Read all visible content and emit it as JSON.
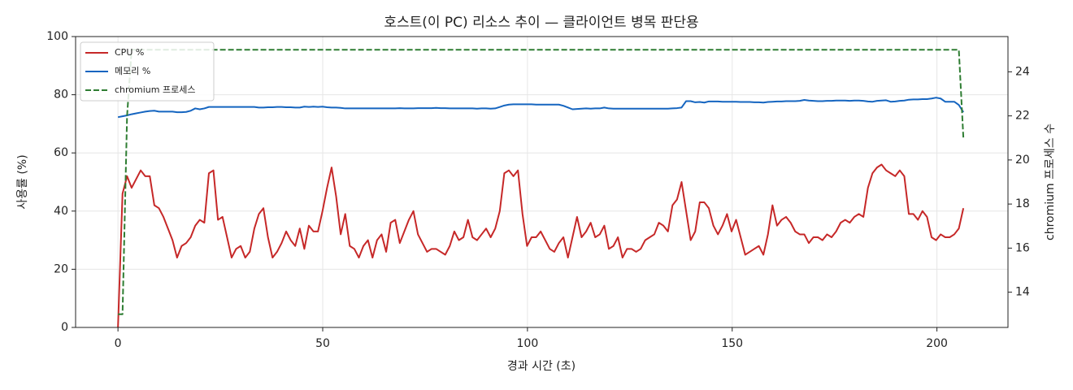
{
  "chart_data": {
    "type": "line",
    "title": "호스트(이 PC) 리소스 추이 — 클라이언트 병목 판단용",
    "xlabel": "경과 시간 (초)",
    "ylabel": "사용률 (%)",
    "y2label": "chromium 프로세스 수",
    "x": [
      0,
      1.11,
      2.22,
      3.33,
      4.44,
      5.55,
      6.66,
      7.77,
      8.88,
      9.99,
      11.1,
      12.21,
      13.32,
      14.43,
      15.54,
      16.65,
      17.76,
      18.87,
      19.98,
      21.09,
      22.2,
      23.31,
      24.42,
      25.53,
      26.64,
      27.75,
      28.86,
      29.97,
      31.08,
      32.19,
      33.3,
      34.41,
      35.52,
      36.63,
      37.74,
      38.85,
      39.96,
      41.07,
      42.18,
      43.29,
      44.4,
      45.51,
      46.62,
      47.73,
      48.84,
      49.95,
      51.06,
      52.17,
      53.28,
      54.39,
      55.5,
      56.61,
      57.72,
      58.83,
      59.94,
      61.05,
      62.16,
      63.27,
      64.38,
      65.49,
      66.6,
      67.71,
      68.82,
      69.93,
      71.04,
      72.15,
      73.26,
      74.37,
      75.48,
      76.59,
      77.7,
      78.81,
      79.92,
      81.03,
      82.14,
      83.25,
      84.36,
      85.47,
      86.58,
      87.69,
      88.8,
      89.91,
      91.02,
      92.13,
      93.24,
      94.35,
      95.46,
      96.57,
      97.68,
      98.79,
      99.9,
      101.01,
      102.12,
      103.23,
      104.34,
      105.45,
      106.56,
      107.67,
      108.78,
      109.89,
      111,
      112.11,
      113.22,
      114.33,
      115.44,
      116.55,
      117.66,
      118.77,
      119.88,
      120.99,
      122.1,
      123.21,
      124.32,
      125.43,
      126.54,
      127.65,
      128.76,
      129.87,
      130.98,
      132.09,
      133.2,
      134.31,
      135.42,
      136.53,
      137.64,
      138.75,
      139.86,
      140.97,
      142.08,
      143.19,
      144.3,
      145.41,
      146.52,
      147.63,
      148.74,
      149.85,
      150.96,
      152.07,
      153.18,
      154.29,
      155.4,
      156.51,
      157.62,
      158.73,
      159.84,
      160.95,
      162.06,
      163.17,
      164.28,
      165.39,
      166.5,
      167.61,
      168.72,
      169.83,
      170.94,
      172.05,
      173.16,
      174.27,
      175.38,
      176.49,
      177.6,
      178.71,
      179.82,
      180.93,
      182.04,
      183.15,
      184.26,
      185.37,
      186.48,
      187.59,
      188.7,
      189.81,
      190.92,
      192.03,
      193.14,
      194.25,
      195.36,
      196.47,
      197.58,
      198.69,
      199.8,
      200.91,
      202.02,
      203.13,
      204.24,
      205.35,
      206.46
    ],
    "series": [
      {
        "name": "CPU %",
        "color": "#c62828",
        "linestyle": "solid",
        "values": [
          0,
          46,
          52,
          48,
          51,
          54,
          52,
          52,
          42,
          41,
          38,
          34,
          30,
          24,
          28,
          29,
          31,
          35,
          37,
          36,
          53,
          54,
          37,
          38,
          31,
          24,
          27,
          28,
          24,
          26,
          34,
          39,
          41,
          31,
          24,
          26,
          29,
          33,
          30,
          28,
          34,
          27,
          35,
          33,
          33,
          40,
          48,
          55,
          45,
          32,
          39,
          28,
          27,
          24,
          28,
          30,
          24,
          30,
          32,
          26,
          36,
          37,
          29,
          33,
          37,
          40,
          32,
          29,
          26,
          27,
          27,
          26,
          25,
          28,
          33,
          30,
          31,
          37,
          31,
          30,
          32,
          34,
          31,
          34,
          40,
          53,
          54,
          52,
          54,
          39,
          28,
          31,
          31,
          33,
          30,
          27,
          26,
          29,
          31,
          24,
          31,
          38,
          31,
          33,
          36,
          31,
          32,
          35,
          27,
          28,
          31,
          24,
          27,
          27,
          26,
          27,
          30,
          31,
          32,
          36,
          35,
          33,
          42,
          44,
          50,
          40,
          30,
          33,
          43,
          43,
          41,
          35,
          32,
          35,
          39,
          33,
          37,
          31,
          25,
          26,
          27,
          28,
          25,
          32,
          42,
          35,
          37,
          38,
          36,
          33,
          32,
          32,
          29,
          31,
          31,
          30,
          32,
          31,
          33,
          36,
          37,
          36,
          38,
          39,
          38,
          48,
          53,
          55,
          56,
          54,
          53,
          52,
          54,
          52,
          39,
          39,
          37,
          40,
          38,
          31,
          30,
          32,
          31,
          31,
          32,
          34,
          41
        ]
      },
      {
        "name": "메모리 %",
        "color": "#1565c0",
        "linestyle": "solid",
        "values": [
          72.3,
          72.6,
          72.9,
          73.3,
          73.6,
          73.9,
          74.2,
          74.4,
          74.5,
          74.2,
          74.2,
          74.2,
          74.2,
          74.0,
          74.0,
          74.1,
          74.5,
          75.3,
          75.0,
          75.3,
          75.8,
          75.8,
          75.8,
          75.8,
          75.8,
          75.8,
          75.8,
          75.8,
          75.8,
          75.8,
          75.8,
          75.6,
          75.6,
          75.7,
          75.7,
          75.8,
          75.8,
          75.7,
          75.7,
          75.6,
          75.6,
          75.9,
          75.8,
          75.9,
          75.8,
          75.9,
          75.7,
          75.6,
          75.6,
          75.5,
          75.3,
          75.3,
          75.3,
          75.3,
          75.3,
          75.3,
          75.3,
          75.3,
          75.3,
          75.3,
          75.3,
          75.3,
          75.4,
          75.3,
          75.3,
          75.3,
          75.4,
          75.4,
          75.4,
          75.4,
          75.5,
          75.4,
          75.4,
          75.3,
          75.3,
          75.3,
          75.3,
          75.3,
          75.3,
          75.2,
          75.3,
          75.3,
          75.2,
          75.3,
          75.8,
          76.3,
          76.6,
          76.7,
          76.7,
          76.7,
          76.7,
          76.7,
          76.6,
          76.6,
          76.6,
          76.6,
          76.6,
          76.6,
          76.2,
          75.6,
          75.0,
          75.1,
          75.2,
          75.3,
          75.2,
          75.3,
          75.3,
          75.6,
          75.3,
          75.2,
          75.2,
          75.2,
          75.2,
          75.2,
          75.2,
          75.2,
          75.2,
          75.2,
          75.2,
          75.2,
          75.2,
          75.2,
          75.3,
          75.4,
          75.6,
          77.8,
          77.8,
          77.4,
          77.5,
          77.3,
          77.7,
          77.7,
          77.7,
          77.6,
          77.6,
          77.6,
          77.6,
          77.5,
          77.5,
          77.5,
          77.4,
          77.4,
          77.3,
          77.5,
          77.6,
          77.7,
          77.7,
          77.8,
          77.8,
          77.8,
          77.9,
          78.2,
          78.0,
          77.9,
          77.8,
          77.8,
          77.9,
          77.9,
          78.0,
          78.0,
          78.0,
          77.9,
          78.0,
          78.0,
          77.9,
          77.7,
          77.6,
          77.9,
          78.0,
          78.1,
          77.6,
          77.7,
          77.9,
          78.0,
          78.3,
          78.4,
          78.4,
          78.5,
          78.5,
          78.7,
          79.0,
          78.7,
          77.6,
          77.6,
          77.6,
          76.5,
          74.0
        ]
      },
      {
        "name": "chromium 프로세스",
        "color": "#2e7d32",
        "linestyle": "dashed",
        "axis": "y2",
        "values": [
          13,
          13,
          22,
          25,
          25,
          25,
          25,
          25,
          25,
          25,
          25,
          25,
          25,
          25,
          25,
          25,
          25,
          25,
          25,
          25,
          25,
          25,
          25,
          25,
          25,
          25,
          25,
          25,
          25,
          25,
          25,
          25,
          25,
          25,
          25,
          25,
          25,
          25,
          25,
          25,
          25,
          25,
          25,
          25,
          25,
          25,
          25,
          25,
          25,
          25,
          25,
          25,
          25,
          25,
          25,
          25,
          25,
          25,
          25,
          25,
          25,
          25,
          25,
          25,
          25,
          25,
          25,
          25,
          25,
          25,
          25,
          25,
          25,
          25,
          25,
          25,
          25,
          25,
          25,
          25,
          25,
          25,
          25,
          25,
          25,
          25,
          25,
          25,
          25,
          25,
          25,
          25,
          25,
          25,
          25,
          25,
          25,
          25,
          25,
          25,
          25,
          25,
          25,
          25,
          25,
          25,
          25,
          25,
          25,
          25,
          25,
          25,
          25,
          25,
          25,
          25,
          25,
          25,
          25,
          25,
          25,
          25,
          25,
          25,
          25,
          25,
          25,
          25,
          25,
          25,
          25,
          25,
          25,
          25,
          25,
          25,
          25,
          25,
          25,
          25,
          25,
          25,
          25,
          25,
          25,
          25,
          25,
          25,
          25,
          25,
          25,
          25,
          25,
          25,
          25,
          25,
          25,
          25,
          25,
          25,
          25,
          25,
          25,
          25,
          25,
          25,
          25,
          25,
          25,
          25,
          25,
          25,
          25,
          25,
          25,
          25,
          25,
          25,
          25,
          25,
          25,
          25,
          25,
          25,
          25,
          25,
          21
        ]
      }
    ],
    "xlim": [
      -10.35,
      217.35
    ],
    "xticks": [
      0,
      50,
      100,
      150,
      200
    ],
    "ylim": [
      0,
      100
    ],
    "yticks": [
      0,
      20,
      40,
      60,
      80,
      100
    ],
    "y2lim": [
      12.4,
      25.6
    ],
    "y2ticks": [
      14,
      16,
      18,
      20,
      22,
      24
    ],
    "grid": true,
    "legend": "upper left"
  }
}
